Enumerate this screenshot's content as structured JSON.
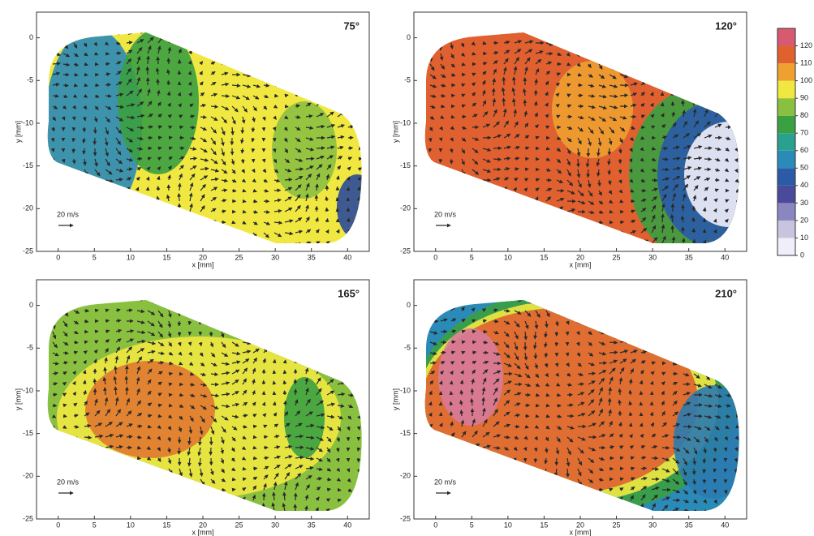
{
  "chart_data": [
    {
      "type": "contour",
      "title": "75°",
      "x_label": "x [mm]",
      "y_label": "y [mm]",
      "annotation": "20 m/s",
      "xlim": [
        -3,
        43
      ],
      "ylim": [
        -25,
        3
      ],
      "xticks": [
        0,
        5,
        10,
        15,
        20,
        25,
        30,
        35,
        40
      ],
      "yticks": [
        0,
        -5,
        -10,
        -15,
        -20,
        -25
      ]
    },
    {
      "type": "contour",
      "title": "120°",
      "x_label": "x [mm]",
      "y_label": "y [mm]",
      "annotation": "20 m/s",
      "xlim": [
        -3,
        43
      ],
      "ylim": [
        -25,
        3
      ],
      "xticks": [
        0,
        5,
        10,
        15,
        20,
        25,
        30,
        35,
        40
      ],
      "yticks": [
        0,
        -5,
        -10,
        -15,
        -20,
        -25
      ]
    },
    {
      "type": "contour",
      "title": "165°",
      "x_label": "x [mm]",
      "y_label": "y [mm]",
      "annotation": "20 m/s",
      "xlim": [
        -3,
        43
      ],
      "ylim": [
        -25,
        3
      ],
      "xticks": [
        0,
        5,
        10,
        15,
        20,
        25,
        30,
        35,
        40
      ],
      "yticks": [
        0,
        -5,
        -10,
        -15,
        -20,
        -25
      ]
    },
    {
      "type": "contour",
      "title": "210°",
      "x_label": "x [mm]",
      "y_label": "y [mm]",
      "annotation": "20 m/s",
      "xlim": [
        -3,
        43
      ],
      "ylim": [
        -25,
        3
      ],
      "xticks": [
        0,
        5,
        10,
        15,
        20,
        25,
        30,
        35,
        40
      ],
      "yticks": [
        0,
        -5,
        -10,
        -15,
        -20,
        -25
      ]
    },
    {
      "type": "colorbar",
      "ylim": [
        0,
        130
      ],
      "yticks": [
        0,
        10,
        20,
        30,
        40,
        50,
        60,
        70,
        80,
        90,
        100,
        110,
        120
      ],
      "colors": [
        "#f0eef8",
        "#c8c4e0",
        "#8a86c0",
        "#4a4a9a",
        "#2a5aa8",
        "#2a8ab8",
        "#2aa090",
        "#3aa040",
        "#8ac040",
        "#f0e840",
        "#f0a030",
        "#e06030",
        "#d85a70"
      ]
    }
  ]
}
